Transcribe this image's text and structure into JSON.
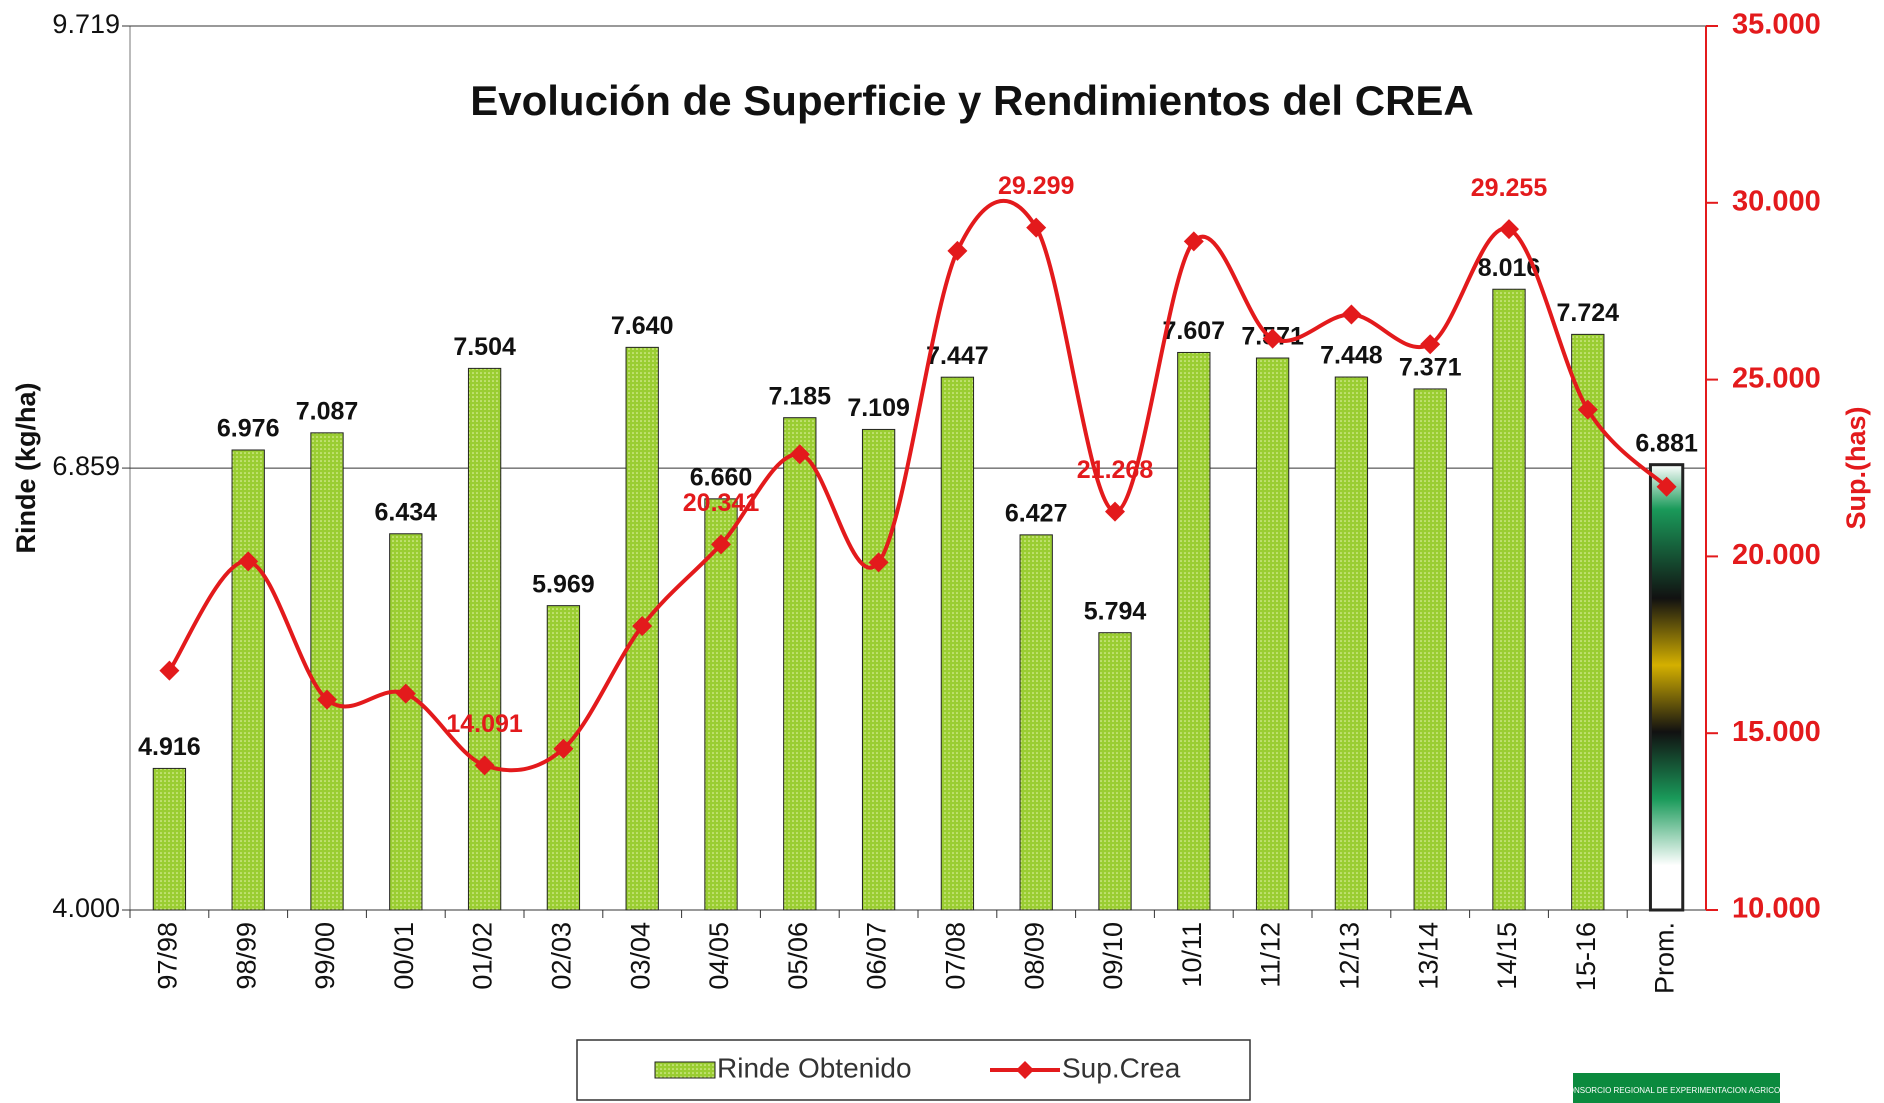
{
  "chart_data": {
    "type": "bar_line",
    "title": "Evolución de Superficie y Rendimientos del CREA",
    "ylabel": "Rinde (kg/ha)",
    "y2label": "Sup.(has)",
    "categories": [
      "97/98",
      "98/99",
      "99/00",
      "00/01",
      "01/02",
      "02/03",
      "03/04",
      "04/05",
      "05/06",
      "06/07",
      "07/08",
      "08/09",
      "09/10",
      "10/11",
      "11/12",
      "12/13",
      "13/14",
      "14/15",
      "15-16",
      "Prom."
    ],
    "series": [
      {
        "name": "Rinde Obtenido",
        "type": "bar",
        "color": "#9acd32",
        "values": [
          4916,
          6976,
          7087,
          6434,
          7504,
          5969,
          7640,
          6660,
          7185,
          7109,
          7447,
          6427,
          5794,
          7607,
          7571,
          7448,
          7371,
          8016,
          7724,
          6881
        ],
        "value_labels": [
          "4.916",
          "6.976",
          "7.087",
          "6.434",
          "7.504",
          "5.969",
          "7.640",
          "6.660",
          "7.185",
          "7.109",
          "7.447",
          "6.427",
          "5.794",
          "7.607",
          "7.571",
          "7.448",
          "7.371",
          "8.016",
          "7.724",
          "6.881"
        ]
      },
      {
        "name": "Sup.Crea",
        "type": "line",
        "axis": "y2",
        "color": "#e31a1c",
        "values": [
          16770,
          19860,
          15950,
          16120,
          14091,
          14560,
          18030,
          20341,
          22890,
          19830,
          28640,
          29299,
          21268,
          28910,
          26160,
          26840,
          26000,
          29255,
          24150,
          21970
        ],
        "value_labels": [
          null,
          null,
          null,
          null,
          "14.091",
          null,
          null,
          "20.341",
          null,
          null,
          null,
          "29.299",
          "21.268",
          null,
          null,
          null,
          null,
          "29.255",
          null,
          null
        ]
      }
    ],
    "ylim": [
      4000,
      9719
    ],
    "yticks": [
      {
        "value": 4000,
        "label": "4.000"
      },
      {
        "value": 6859,
        "label": "6.859"
      },
      {
        "value": 9719,
        "label": "9.719"
      }
    ],
    "y2lim": [
      10000,
      35000
    ],
    "y2ticks": [
      {
        "value": 10000,
        "label": "10.000"
      },
      {
        "value": 15000,
        "label": "15.000"
      },
      {
        "value": 20000,
        "label": "20.000"
      },
      {
        "value": 25000,
        "label": "25.000"
      },
      {
        "value": 30000,
        "label": "30.000"
      },
      {
        "value": 35000,
        "label": "35.000"
      }
    ],
    "grid": true,
    "legend": "bottom",
    "logo": "CONSORCIO REGIONAL DE EXPERIMENTACION AGRICOLA"
  }
}
